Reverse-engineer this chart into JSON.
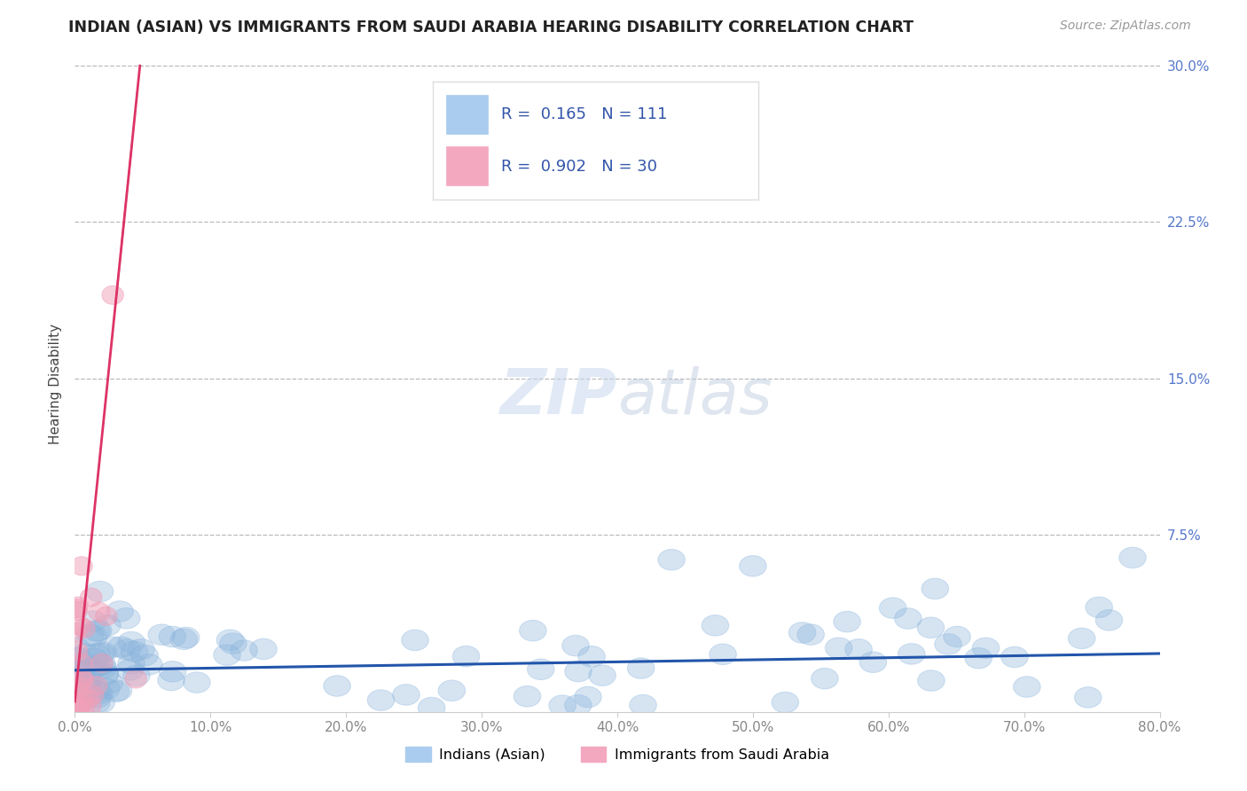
{
  "title": "INDIAN (ASIAN) VS IMMIGRANTS FROM SAUDI ARABIA HEARING DISABILITY CORRELATION CHART",
  "source": "Source: ZipAtlas.com",
  "ylabel": "Hearing Disability",
  "xlim": [
    0.0,
    0.8
  ],
  "ylim": [
    -0.01,
    0.305
  ],
  "plot_ylim": [
    0.0,
    0.305
  ],
  "yticks": [
    0.075,
    0.15,
    0.225,
    0.3
  ],
  "ytick_labels": [
    "7.5%",
    "15.0%",
    "22.5%",
    "30.0%"
  ],
  "xticks": [
    0.0,
    0.1,
    0.2,
    0.3,
    0.4,
    0.5,
    0.6,
    0.7,
    0.8
  ],
  "xtick_labels": [
    "0.0%",
    "10.0%",
    "20.0%",
    "30.0%",
    "40.0%",
    "50.0%",
    "60.0%",
    "70.0%",
    "80.0%"
  ],
  "background_color": "#ffffff",
  "series1_color": "#8ab4dc",
  "series1_trend_color": "#2255aa",
  "series2_color": "#f0a0b8",
  "series2_trend_color": "#dd3366",
  "series1_name": "Indians (Asian)",
  "series2_name": "Immigrants from Saudi Arabia",
  "R1": "0.165",
  "N1": "111",
  "R2": "0.902",
  "N2": "30",
  "legend_color": "#3355aa",
  "tick_color": "#5577cc",
  "watermark": "ZIPatlas",
  "title_fontsize": 12.5,
  "source_fontsize": 10,
  "tick_fontsize": 11,
  "ylabel_fontsize": 11
}
